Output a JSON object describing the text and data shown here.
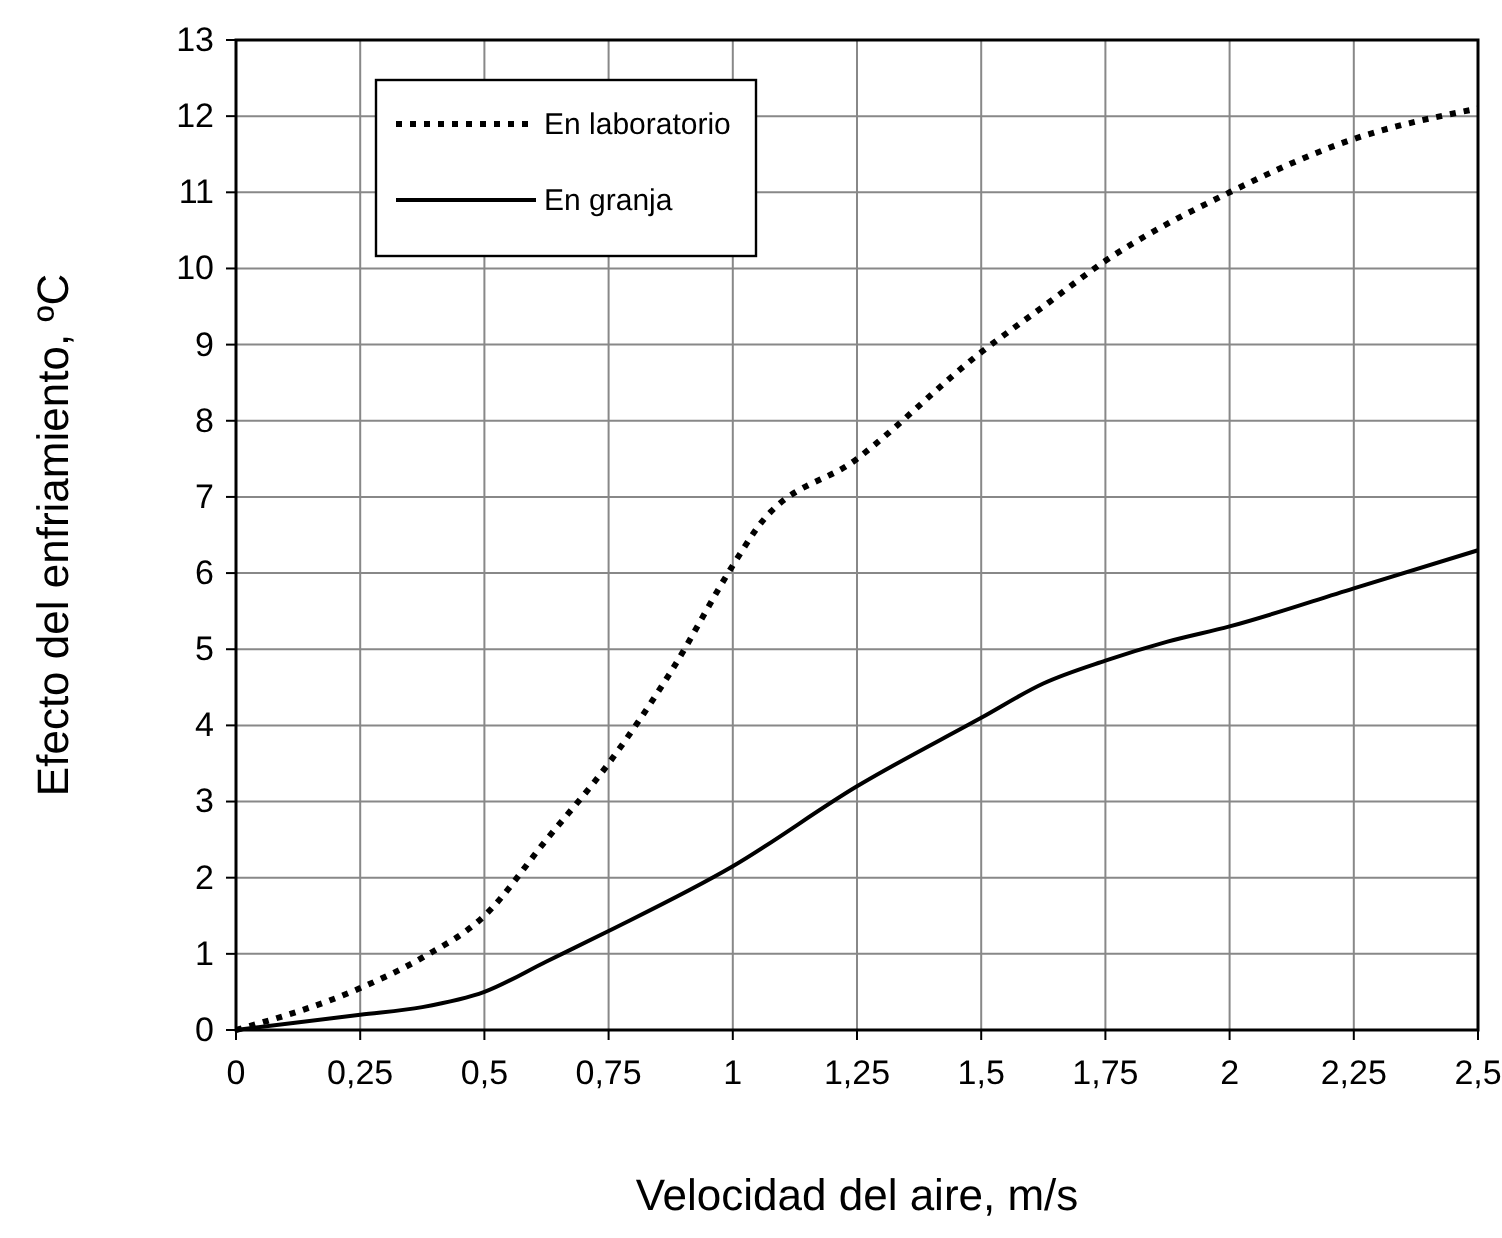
{
  "chart_data": {
    "type": "line",
    "xlabel": "Velocidad del aire, m/s",
    "ylabel": "Efecto del enfriamiento, ºC",
    "xlim": [
      0,
      2.5
    ],
    "xticks": [
      0,
      {
        "value": 0.25,
        "label": "0,25"
      },
      {
        "value": 0.5,
        "label": "0,5"
      },
      {
        "value": 0.75,
        "label": "0,75"
      },
      1,
      {
        "value": 1.25,
        "label": "1,25"
      },
      {
        "value": 1.5,
        "label": "1,5"
      },
      {
        "value": 1.75,
        "label": "1,75"
      },
      2,
      {
        "value": 2.25,
        "label": "2,25"
      },
      {
        "value": 2.5,
        "label": "2,5"
      }
    ],
    "ylim": [
      0,
      13
    ],
    "yticks": [
      0,
      1,
      2,
      3,
      4,
      5,
      6,
      7,
      8,
      9,
      10,
      11,
      12,
      13
    ],
    "grid": true,
    "legend": "top left",
    "marker": "none",
    "series": [
      {
        "name": "En laboratorio",
        "color": "#000000",
        "line_style": "dotted",
        "x": [
          0,
          0.25,
          0.375,
          0.5,
          0.625,
          0.75,
          0.875,
          1,
          1.05,
          1.25,
          1.5,
          1.625,
          1.75,
          2,
          2.25,
          2.5
        ],
        "values": [
          0,
          0.55,
          0.95,
          1.5,
          2.5,
          3.5,
          4.7,
          6.1,
          6.6,
          7.5,
          8.9,
          9.5,
          10.1,
          11,
          11.7,
          12.1
        ]
      },
      {
        "name": "En granja",
        "color": "#000000",
        "line_style": "solid",
        "x": [
          0,
          0.25,
          0.375,
          0.5,
          0.625,
          0.75,
          1,
          1.25,
          1.5,
          1.625,
          1.75,
          1.875,
          2,
          2.25,
          2.5
        ],
        "values": [
          0,
          0.2,
          0.3,
          0.5,
          0.9,
          1.3,
          2.15,
          3.2,
          4.1,
          4.55,
          4.85,
          5.1,
          5.3,
          5.8,
          6.3
        ]
      }
    ]
  }
}
